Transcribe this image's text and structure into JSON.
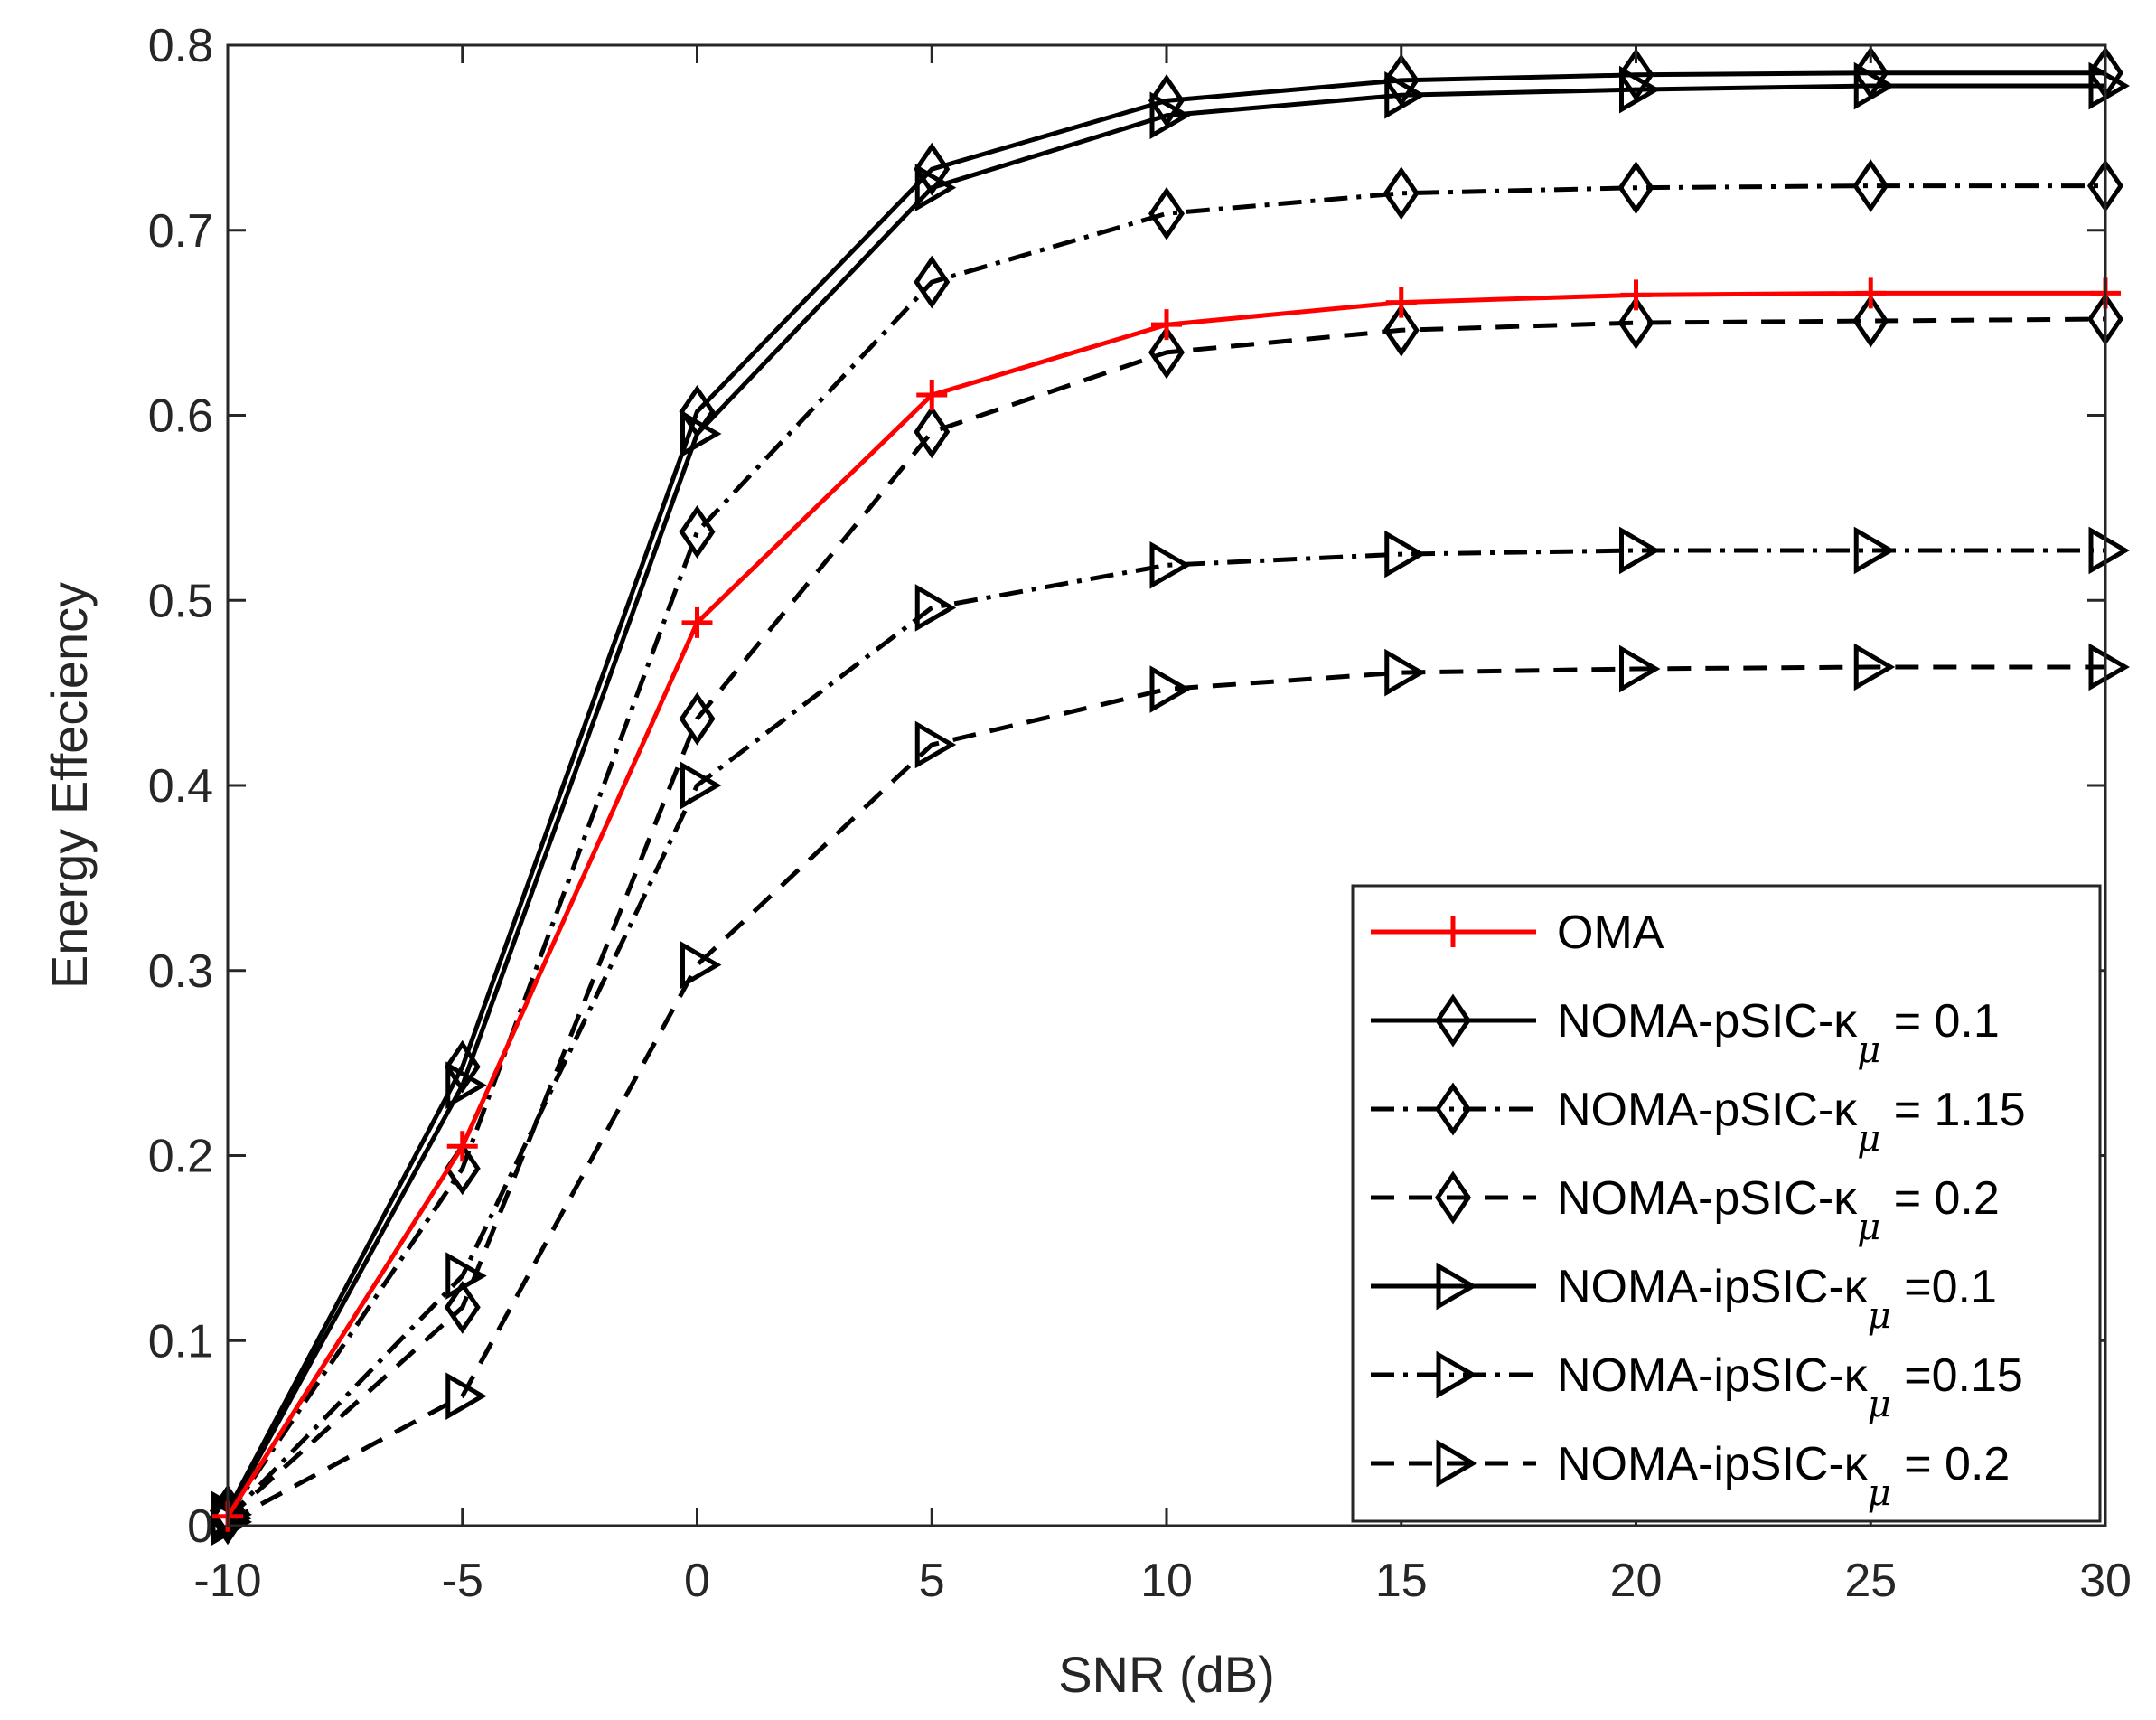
{
  "chart_data": {
    "type": "line",
    "title": "",
    "xlabel": "SNR (dB)",
    "ylabel": "Energy Effeciency",
    "x": [
      -10,
      -5,
      0,
      5,
      10,
      15,
      20,
      25,
      30
    ],
    "xlim": [
      -10,
      30
    ],
    "ylim": [
      0,
      0.8
    ],
    "xticks": [
      -10,
      -5,
      0,
      5,
      10,
      15,
      20,
      25,
      30
    ],
    "yticks": [
      0,
      0.1,
      0.2,
      0.3,
      0.4,
      0.5,
      0.6,
      0.7,
      0.8
    ],
    "xtick_labels": [
      "-10",
      "-5",
      "0",
      "5",
      "10",
      "15",
      "20",
      "25",
      "30"
    ],
    "ytick_labels": [
      "0",
      "0.1",
      "0.2",
      "0.3",
      "0.4",
      "0.5",
      "0.6",
      "0.7",
      "0.8"
    ],
    "grid": false,
    "legend_position": "bottom-right",
    "series": [
      {
        "name": "OMA",
        "legend_main": "OMA",
        "legend_sub": "",
        "legend_tail": "",
        "color": "#ff0000",
        "dash": "solid",
        "marker": "plus",
        "values": [
          0.005,
          0.205,
          0.488,
          0.611,
          0.649,
          0.661,
          0.665,
          0.666,
          0.666
        ]
      },
      {
        "name": "NOMA-pSIC-κμ = 0.1",
        "legend_main": "NOMA-pSIC-κ",
        "legend_sub": "μ",
        "legend_tail": " = 0.1",
        "color": "#000000",
        "dash": "solid",
        "marker": "diamond",
        "values": [
          0.008,
          0.248,
          0.602,
          0.733,
          0.77,
          0.781,
          0.784,
          0.785,
          0.785
        ]
      },
      {
        "name": "NOMA-pSIC-κμ = 1.15",
        "legend_main": "NOMA-pSIC-κ",
        "legend_sub": "μ",
        "legend_tail": " = 1.15",
        "color": "#000000",
        "dash": "dashdot",
        "marker": "diamond",
        "values": [
          0.005,
          0.193,
          0.537,
          0.672,
          0.709,
          0.72,
          0.723,
          0.724,
          0.724
        ]
      },
      {
        "name": "NOMA-pSIC-κμ = 0.2",
        "legend_main": "NOMA-pSIC-κ",
        "legend_sub": "μ",
        "legend_tail": " = 0.2",
        "color": "#000000",
        "dash": "dashed",
        "marker": "diamond",
        "values": [
          0.004,
          0.118,
          0.436,
          0.591,
          0.634,
          0.646,
          0.65,
          0.651,
          0.652
        ]
      },
      {
        "name": "NOMA-ipSIC-κμ =0.1",
        "legend_main": "NOMA-ipSIC-κ",
        "legend_sub": "μ",
        "legend_tail": " =0.1",
        "color": "#000000",
        "dash": "solid",
        "marker": "triangle-right",
        "values": [
          0.006,
          0.238,
          0.59,
          0.723,
          0.762,
          0.773,
          0.776,
          0.778,
          0.778
        ]
      },
      {
        "name": "NOMA-ipSIC-κμ =0.15",
        "legend_main": "NOMA-ipSIC-κ",
        "legend_sub": "μ",
        "legend_tail": " =0.15",
        "color": "#000000",
        "dash": "dashdot",
        "marker": "triangle-right",
        "values": [
          0.004,
          0.135,
          0.4,
          0.496,
          0.519,
          0.525,
          0.527,
          0.527,
          0.527
        ]
      },
      {
        "name": "NOMA-ipSIC-κμ = 0.2",
        "legend_main": "NOMA-ipSIC-κ",
        "legend_sub": "μ",
        "legend_tail": " = 0.2",
        "color": "#000000",
        "dash": "dashed",
        "marker": "triangle-right",
        "values": [
          0.002,
          0.07,
          0.303,
          0.422,
          0.452,
          0.461,
          0.463,
          0.464,
          0.464
        ]
      }
    ]
  }
}
